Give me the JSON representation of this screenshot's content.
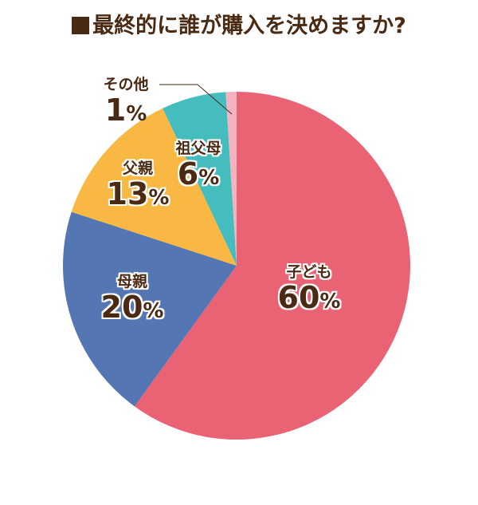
{
  "title": "最終的に誰が購入を決めますか?",
  "chart_data": {
    "type": "pie",
    "title": "最終的に誰が購入を決めますか?",
    "categories": [
      "子ども",
      "母親",
      "父親",
      "祖父母",
      "その他"
    ],
    "values": [
      60,
      20,
      13,
      6,
      1
    ],
    "unit": "%",
    "colors": [
      "#e96374",
      "#5476b3",
      "#f8b843",
      "#45bcbd",
      "#f3b4c0"
    ],
    "start_angle": "12 o'clock, clockwise",
    "legend": "none (inline labels)"
  },
  "labels": {
    "children": {
      "name": "子ども",
      "value": "60",
      "pct": "%"
    },
    "mother": {
      "name": "母親",
      "value": "20",
      "pct": "%"
    },
    "father": {
      "name": "父親",
      "value": "13",
      "pct": "%"
    },
    "grandparents": {
      "name": "祖父母",
      "value": "6",
      "pct": "%"
    },
    "other": {
      "name": "その他",
      "value": "1",
      "pct": "%"
    }
  }
}
